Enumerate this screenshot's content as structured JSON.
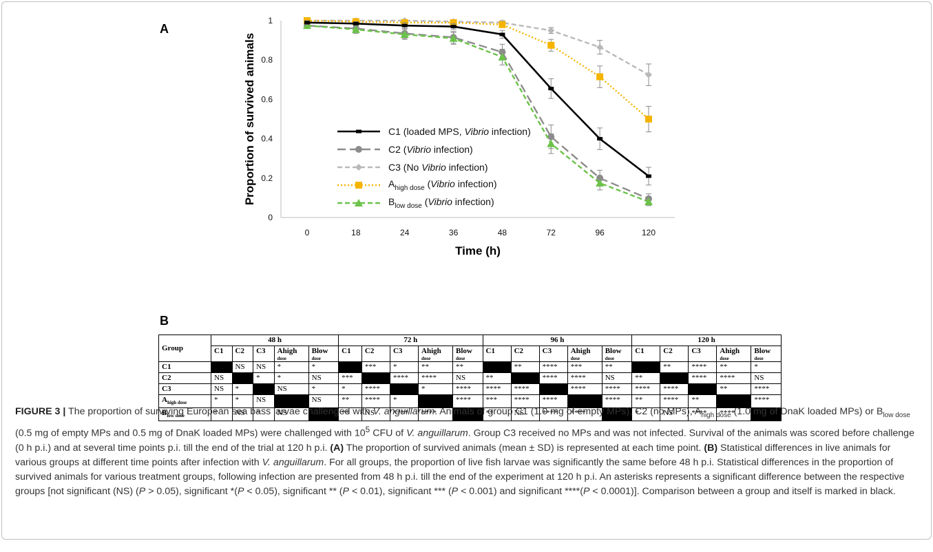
{
  "panel_a_label": "A",
  "panel_b_label": "B",
  "chart_data": {
    "type": "line",
    "ylabel": "Proportion of survived animals",
    "xlabel": "Time (h)",
    "categories": [
      "0",
      "18",
      "24",
      "36",
      "48",
      "72",
      "96",
      "120"
    ],
    "ylim": [
      0,
      1
    ],
    "yticks": [
      "0",
      "0.2",
      "0.4",
      "0.6",
      "0.8",
      "1"
    ],
    "legend_position": "center",
    "series": [
      {
        "name": "C1 (loaded MPS, Vibrio infection)",
        "color": "#000000",
        "dash": "solid",
        "marker": "dash",
        "values": [
          0.99,
          0.985,
          0.975,
          0.97,
          0.93,
          0.655,
          0.4,
          0.21
        ],
        "errors": [
          0.01,
          0.01,
          0.015,
          0.015,
          0.02,
          0.05,
          0.055,
          0.045
        ]
      },
      {
        "name": "C2 (Vibrio infection)",
        "color": "#8c8c8c",
        "dash": "longdash",
        "marker": "circle",
        "values": [
          0.975,
          0.96,
          0.935,
          0.915,
          0.84,
          0.41,
          0.2,
          0.095
        ],
        "errors": [
          0.01,
          0.02,
          0.025,
          0.03,
          0.04,
          0.06,
          0.04,
          0.025
        ]
      },
      {
        "name": "C3 (No Vibrio infection)",
        "color": "#b9b9b9",
        "dash": "dash",
        "marker": "diamond",
        "values": [
          1.0,
          1.0,
          1.0,
          0.995,
          0.99,
          0.95,
          0.865,
          0.725
        ],
        "errors": [
          0.005,
          0.005,
          0.005,
          0.01,
          0.01,
          0.015,
          0.035,
          0.055
        ]
      },
      {
        "name": "Ahigh dose (Vibrio infection)",
        "color": "#f5b400",
        "dash": "dot",
        "marker": "square",
        "values": [
          1.0,
          0.995,
          0.99,
          0.99,
          0.98,
          0.875,
          0.715,
          0.5
        ],
        "errors": [
          0.005,
          0.005,
          0.01,
          0.01,
          0.015,
          0.03,
          0.055,
          0.065
        ]
      },
      {
        "name": "Blow dose (Vibrio infection)",
        "color": "#6cc24a",
        "dash": "dash",
        "marker": "triangle",
        "values": [
          0.975,
          0.955,
          0.93,
          0.91,
          0.815,
          0.375,
          0.175,
          0.08
        ],
        "errors": [
          0.01,
          0.02,
          0.025,
          0.03,
          0.04,
          0.05,
          0.035,
          0.02
        ]
      }
    ]
  },
  "legend": [
    {
      "main": "C1 (loaded MPS, ",
      "italic": "Vibrio",
      "rest": " infection)"
    },
    {
      "main": "C2 (",
      "italic": "Vibrio",
      "rest": " infection)"
    },
    {
      "main": "C3 (No ",
      "italic": "Vibrio",
      "rest": " infection)"
    },
    {
      "main": "A",
      "sub": "high dose",
      "main2": " (",
      "italic": "Vibrio",
      "rest": " infection)"
    },
    {
      "main": "B",
      "sub": "low dose",
      "main2": " (",
      "italic": "Vibrio",
      "rest": " infection)"
    }
  ],
  "table": {
    "group_header": "Group",
    "time_headers": [
      "48 h",
      "72 h",
      "96 h",
      "120 h"
    ],
    "sub_headers": [
      {
        "main": "C1",
        "small": ""
      },
      {
        "main": "C2",
        "small": ""
      },
      {
        "main": "C3",
        "small": ""
      },
      {
        "main": "Ahigh",
        "small": "dose"
      },
      {
        "main": "Blow",
        "small": "dose"
      }
    ],
    "row_labels": [
      {
        "main": "C1",
        "sub": ""
      },
      {
        "main": "C2",
        "sub": ""
      },
      {
        "main": "C3",
        "sub": ""
      },
      {
        "main": "A",
        "sub": "high dose"
      },
      {
        "main": "B",
        "sub": "low dose"
      }
    ],
    "rows": [
      [
        "",
        "NS",
        "NS",
        "*",
        "*",
        "",
        "***",
        "*",
        "**",
        "**",
        "",
        "**",
        "****",
        "***",
        "**",
        "",
        "**",
        "****",
        "**",
        "*"
      ],
      [
        "NS",
        "",
        "*",
        "*",
        "NS",
        "***",
        "",
        "****",
        "****",
        "NS",
        "**",
        "",
        "****",
        "****",
        "NS",
        "**",
        "",
        "****",
        "****",
        "NS"
      ],
      [
        "NS",
        "*",
        "",
        "NS",
        "*",
        "*",
        "****",
        "",
        "*",
        "****",
        "****",
        "****",
        "",
        "****",
        "****",
        "****",
        "****",
        "",
        "**",
        "****"
      ],
      [
        "*",
        "*",
        "NS",
        "",
        "NS",
        "**",
        "****",
        "*",
        "",
        "****",
        "***",
        "****",
        "****",
        "",
        "****",
        "**",
        "****",
        "**",
        "",
        "****"
      ],
      [
        "*",
        "NS",
        "*",
        "NS",
        "",
        "**",
        "NS",
        "****",
        "****",
        "",
        "**",
        "NS",
        "****",
        "****",
        "",
        "*",
        "NS",
        "****",
        "****",
        ""
      ]
    ]
  },
  "caption": {
    "label": "FIGURE 3 |",
    "s1": " The proportion of surviving European sea bass larvae challenged with ",
    "i1": "V. anguillarum",
    "s2": ". Animals of group C1 (1.0 mg of empty MPs), C2 (no MPs), A",
    "sub1": "high dose",
    "s3": " (1.0 mg of DnaK loaded MPs) or B",
    "sub2": "low dose",
    "s4": " (0.5 mg of empty MPs and 0.5 mg of DnaK loaded MPs) were challenged with 10",
    "sup1": "5",
    "s5": " CFU of ",
    "i2": "V. anguillarum",
    "s6": ". Group C3 received no MPs and was not infected. Survival of the animals was scored before challenge (0 h p.i.) and at several time points p.i. till the end of the trial at 120 h p.i. ",
    "b1": "(A)",
    "s7": " The proportion of survived animals (mean ± SD) is represented at each time point. ",
    "b2": "(B)",
    "s8": " Statistical differences in live animals for various groups at different time points after infection with ",
    "i3": "V. anguillarum",
    "s9": ". For all groups, the proportion of live fish larvae was significantly the same before 48 h p.i. Statistical differences in the proportion of survived animals for various treatment groups, following infection are presented from 48 h p.i. till the end of the experiment at 120 h p.i. An asterisks represents a significant difference between the respective groups [not significant (NS) (",
    "i4": "P",
    "s10": " > 0.05), significant *(",
    "i5": "P",
    "s11": " < 0.05), significant ** (",
    "i6": "P",
    "s12": " < 0.01), significant *** (",
    "i7": "P",
    "s13": " < 0.001) and significant ****(",
    "i8": "P",
    "s14": " < 0.0001)]. Comparison between a group and itself is marked in black."
  }
}
